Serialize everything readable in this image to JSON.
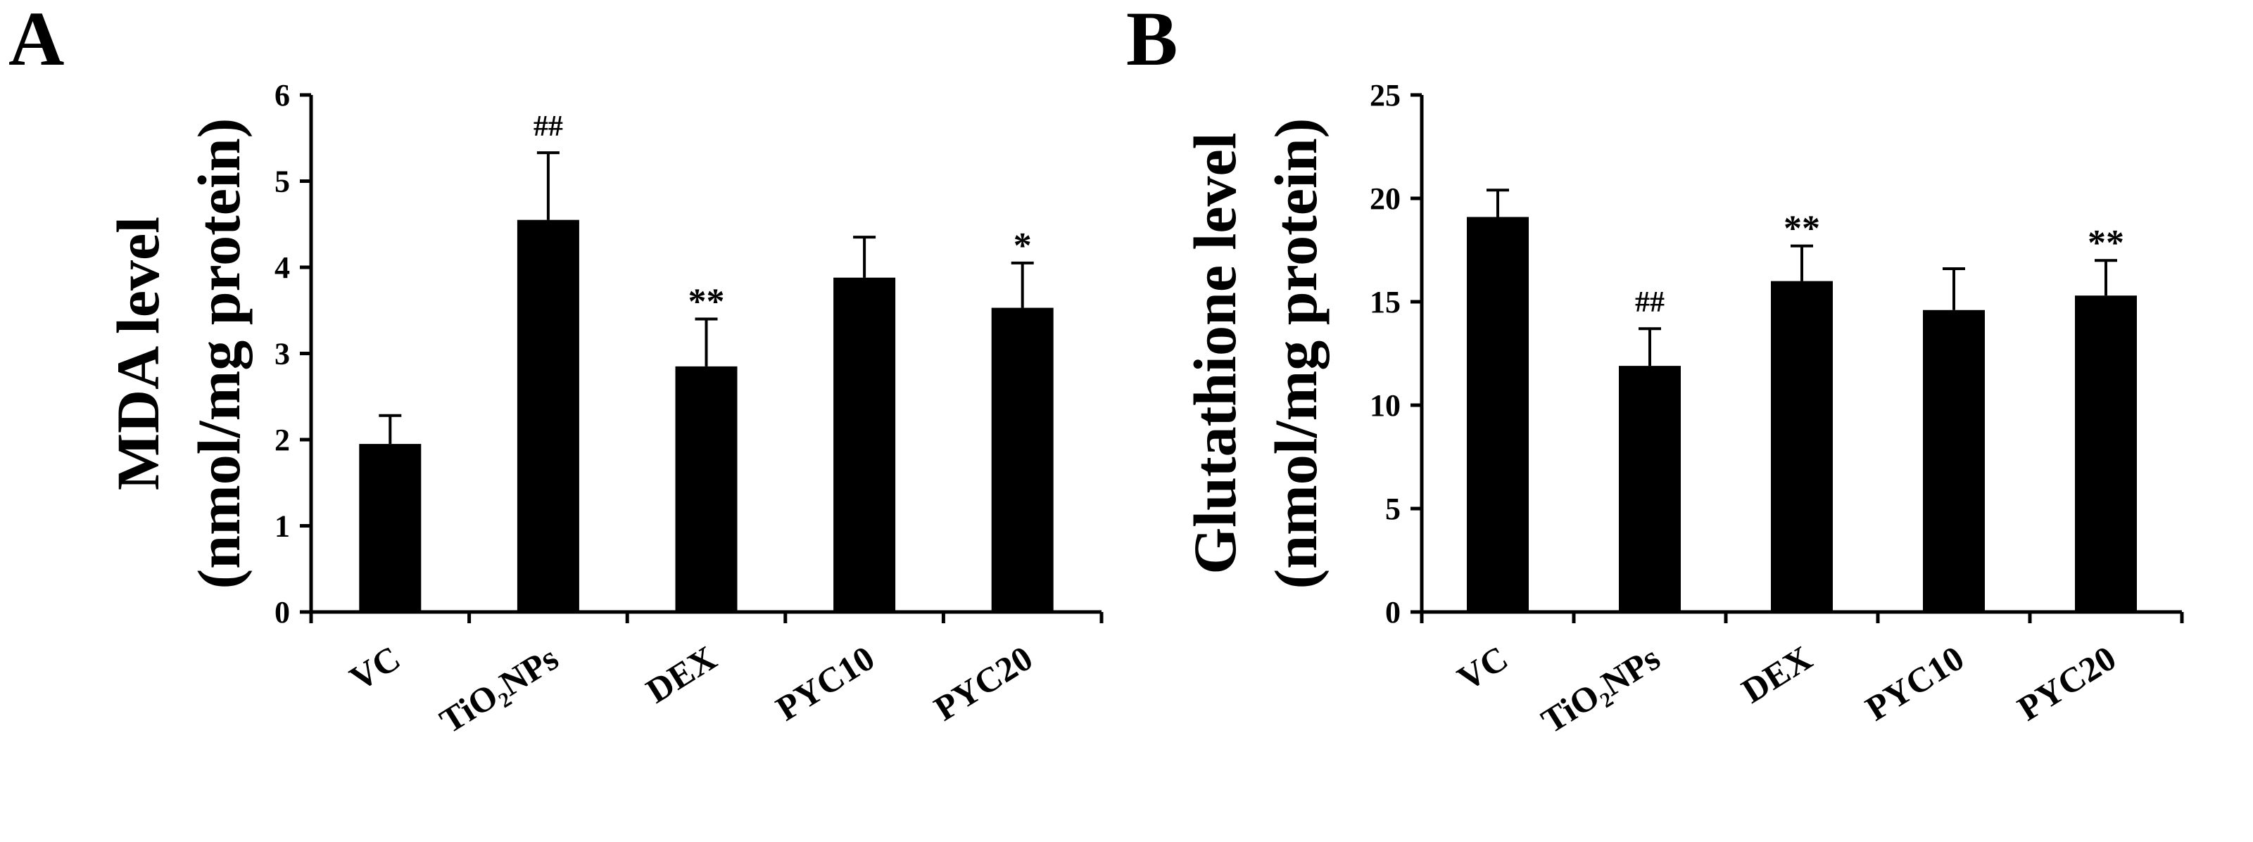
{
  "chart_data": [
    {
      "type": "bar",
      "panel_label": "A",
      "title": "",
      "xlabel": "",
      "ylabel_line1": "MDA level",
      "ylabel_line2": "(nmol/mg protein)",
      "ylim": [
        0,
        6
      ],
      "yticks": [
        0,
        1,
        2,
        3,
        4,
        5,
        6
      ],
      "categories": [
        "VC",
        "TiO₂NPs",
        "DEX",
        "PYC10",
        "PYC20"
      ],
      "values": [
        1.95,
        4.55,
        2.85,
        3.88,
        3.53
      ],
      "errors": [
        0.33,
        0.78,
        0.55,
        0.47,
        0.52
      ],
      "significance": [
        "",
        "##",
        "**",
        "",
        "*"
      ],
      "grid": false,
      "color": "#000000"
    },
    {
      "type": "bar",
      "panel_label": "B",
      "title": "",
      "xlabel": "",
      "ylabel_line1": "Glutathione level",
      "ylabel_line2": "(nmol/mg protein)",
      "ylim": [
        0,
        25
      ],
      "yticks": [
        0,
        5,
        10,
        15,
        20,
        25
      ],
      "categories": [
        "VC",
        "TiO₂NPs",
        "DEX",
        "PYC10",
        "PYC20"
      ],
      "values": [
        19.1,
        11.9,
        16.0,
        14.6,
        15.3
      ],
      "errors": [
        1.3,
        1.8,
        1.7,
        2.0,
        1.7
      ],
      "significance": [
        "",
        "##",
        "**",
        "",
        "**"
      ],
      "grid": false,
      "color": "#000000"
    }
  ]
}
